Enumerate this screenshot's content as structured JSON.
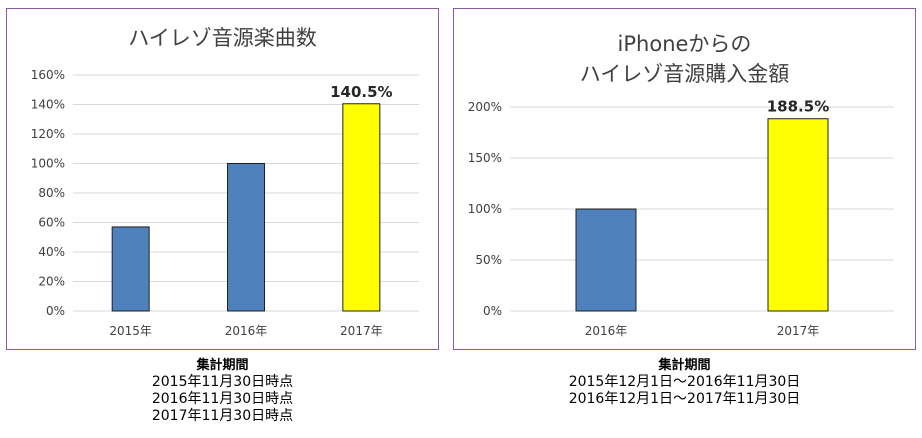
{
  "colors": {
    "border": "#8e5aa8",
    "bar_blue": "#4f81bd",
    "bar_highlight": "#ffff00",
    "gridline": "#d9d9d9",
    "title_text": "#404040"
  },
  "chart_data": [
    {
      "type": "bar",
      "title": "ハイレゾ音源楽曲数",
      "categories": [
        "2015年",
        "2016年",
        "2017年"
      ],
      "values": [
        57,
        100,
        140.5
      ],
      "bar_colors": [
        "#4f81bd",
        "#4f81bd",
        "#ffff00"
      ],
      "data_labels": [
        "",
        "",
        "140.5%"
      ],
      "ylim": [
        0,
        160
      ],
      "yticks": [
        "0%",
        "20%",
        "40%",
        "60%",
        "80%",
        "100%",
        "120%",
        "140%",
        "160%"
      ],
      "grid": true,
      "legend": "none",
      "caption": [
        "集計期間",
        "2015年11月30日時点",
        "2016年11月30日時点",
        "2017年11月30日時点"
      ]
    },
    {
      "type": "bar",
      "title": "iPhoneからの",
      "subtitle": "ハイレゾ音源購入金額",
      "categories": [
        "2016年",
        "2017年"
      ],
      "values": [
        100,
        188.5
      ],
      "bar_colors": [
        "#4f81bd",
        "#ffff00"
      ],
      "data_labels": [
        "",
        "188.5%"
      ],
      "ylim": [
        0,
        200
      ],
      "yticks": [
        "0%",
        "50%",
        "100%",
        "150%",
        "200%"
      ],
      "grid": true,
      "legend": "none",
      "caption": [
        "集計期間",
        "2015年12月1日～2016年11月30日",
        "2016年12月1日～2017年11月30日"
      ]
    }
  ]
}
